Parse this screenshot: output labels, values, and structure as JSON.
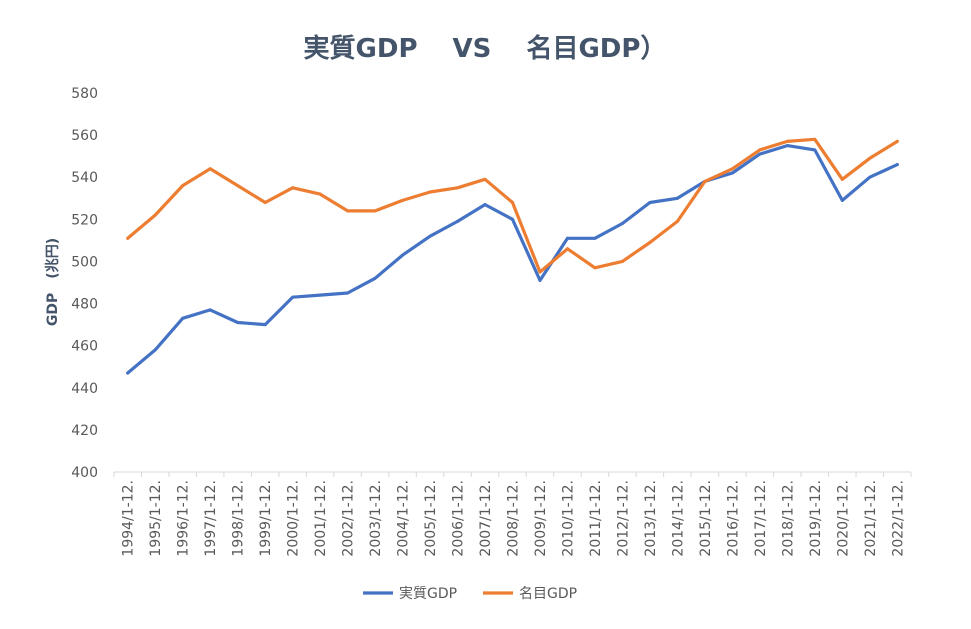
{
  "chart_data": {
    "type": "line",
    "title": "実質GDP　 VS　 名目GDP）",
    "xlabel": "",
    "ylabel": "GDP　(兆円)",
    "ylim": [
      400,
      580
    ],
    "yticks": [
      400,
      420,
      440,
      460,
      480,
      500,
      520,
      540,
      560,
      580
    ],
    "grid": false,
    "legend_position": "bottom",
    "categories": [
      "1994/1-12.",
      "1995/1-12.",
      "1996/1-12.",
      "1997/1-12.",
      "1998/1-12.",
      "1999/1-12.",
      "2000/1-12.",
      "2001/1-12.",
      "2002/1-12.",
      "2003/1-12.",
      "2004/1-12.",
      "2005/1-12.",
      "2006/1-12.",
      "2007/1-12.",
      "2008/1-12.",
      "2009/1-12.",
      "2010/1-12.",
      "2011/1-12.",
      "2012/1-12.",
      "2013/1-12.",
      "2014/1-12.",
      "2015/1-12.",
      "2016/1-12.",
      "2017/1-12.",
      "2018/1-12.",
      "2019/1-12.",
      "2020/1-12.",
      "2021/1-12.",
      "2022/1-12."
    ],
    "series": [
      {
        "name": "実質GDP",
        "color": "#4472c4",
        "values": [
          447,
          458,
          473,
          477,
          471,
          470,
          483,
          484,
          485,
          492,
          503,
          512,
          519,
          527,
          520,
          491,
          511,
          511,
          518,
          528,
          530,
          538,
          542,
          551,
          555,
          553,
          529,
          540,
          546
        ]
      },
      {
        "name": "名目GDP",
        "color": "#ed7d31",
        "values": [
          511,
          522,
          536,
          544,
          536,
          528,
          535,
          532,
          524,
          524,
          529,
          533,
          535,
          539,
          528,
          495,
          506,
          497,
          500,
          509,
          519,
          538,
          544,
          553,
          557,
          558,
          539,
          549,
          557
        ]
      }
    ]
  }
}
